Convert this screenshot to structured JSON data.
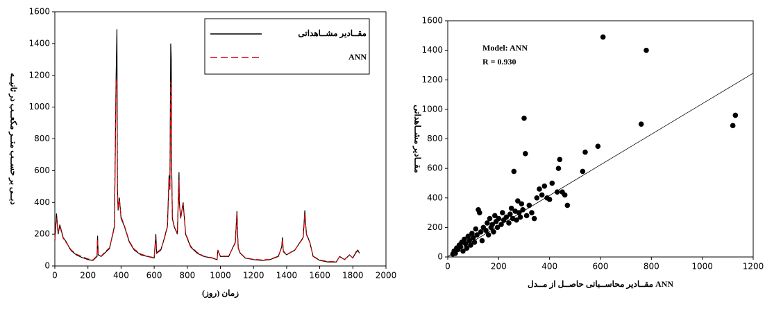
{
  "chart_data": [
    {
      "type": "line",
      "y_label": "دبــی بر حســب متــر مکعــب در ثانیــه",
      "x_label": "زمان (روز)",
      "xlim": [
        0,
        2000
      ],
      "xticks": [
        0,
        200,
        400,
        600,
        800,
        1000,
        1200,
        1400,
        1600,
        1800,
        2000
      ],
      "ylim": [
        0,
        1600
      ],
      "yticks": [
        0,
        200,
        400,
        600,
        800,
        1000,
        1200,
        1400,
        1600
      ],
      "legend": "upper right",
      "x": [
        0,
        10,
        20,
        30,
        50,
        70,
        90,
        100,
        130,
        160,
        200,
        230,
        255,
        258,
        262,
        280,
        300,
        330,
        360,
        370,
        375,
        378,
        382,
        390,
        400,
        420,
        450,
        480,
        520,
        560,
        600,
        610,
        615,
        640,
        660,
        680,
        690,
        695,
        700,
        703,
        706,
        710,
        720,
        740,
        750,
        752,
        756,
        760,
        775,
        790,
        820,
        860,
        900,
        950,
        980,
        985,
        1000,
        1050,
        1090,
        1100,
        1104,
        1108,
        1120,
        1150,
        1200,
        1250,
        1300,
        1350,
        1370,
        1375,
        1380,
        1400,
        1450,
        1500,
        1510,
        1515,
        1520,
        1540,
        1560,
        1600,
        1650,
        1700,
        1720,
        1750,
        1780,
        1800,
        1820,
        1830,
        1840
      ],
      "series": [
        {
          "name": "مقــادیر مشــاهداتی",
          "color": "#000000",
          "dash": false,
          "values": [
            160,
            330,
            200,
            260,
            180,
            150,
            110,
            95,
            70,
            55,
            40,
            35,
            60,
            190,
            70,
            60,
            80,
            110,
            250,
            1190,
            1490,
            500,
            350,
            430,
            300,
            250,
            150,
            100,
            70,
            60,
            50,
            200,
            80,
            100,
            170,
            250,
            570,
            500,
            1400,
            1300,
            600,
            300,
            250,
            200,
            590,
            400,
            350,
            300,
            400,
            200,
            120,
            80,
            60,
            50,
            40,
            100,
            60,
            60,
            150,
            345,
            200,
            110,
            80,
            50,
            40,
            35,
            40,
            60,
            120,
            180,
            90,
            70,
            100,
            180,
            350,
            260,
            200,
            150,
            60,
            35,
            25,
            25,
            60,
            40,
            70,
            50,
            90,
            100,
            80
          ]
        },
        {
          "name": "ANN",
          "color": "#e00000",
          "dash": true,
          "values": [
            170,
            300,
            210,
            250,
            175,
            145,
            115,
            100,
            75,
            60,
            45,
            38,
            65,
            170,
            75,
            62,
            85,
            115,
            240,
            1180,
            1150,
            480,
            360,
            420,
            310,
            255,
            155,
            105,
            75,
            62,
            52,
            180,
            85,
            105,
            165,
            245,
            540,
            480,
            1160,
            1100,
            560,
            310,
            255,
            205,
            540,
            390,
            345,
            305,
            390,
            205,
            125,
            85,
            62,
            52,
            42,
            95,
            62,
            62,
            145,
            330,
            195,
            115,
            82,
            52,
            42,
            38,
            42,
            62,
            115,
            170,
            95,
            72,
            102,
            175,
            330,
            250,
            195,
            148,
            62,
            38,
            28,
            28,
            58,
            42,
            68,
            52,
            85,
            95,
            82
          ]
        }
      ]
    },
    {
      "type": "scatter",
      "y_label": "مقــادیر مشــاهداتی",
      "x_label": "مقــادیر محاســباتی حاصــل از مــدل ANN",
      "annotations": [
        "Model: ANN",
        "R = 0.930"
      ],
      "xlim": [
        0,
        1200
      ],
      "xticks": [
        0,
        200,
        400,
        600,
        800,
        1000,
        1200
      ],
      "ylim": [
        0,
        1600
      ],
      "yticks": [
        0,
        200,
        400,
        600,
        800,
        1000,
        1200,
        1400,
        1600
      ],
      "color": "#000000",
      "x": [
        20,
        25,
        30,
        35,
        40,
        45,
        50,
        55,
        60,
        65,
        70,
        75,
        80,
        85,
        90,
        95,
        100,
        105,
        110,
        115,
        120,
        125,
        130,
        135,
        140,
        150,
        155,
        160,
        165,
        170,
        175,
        180,
        185,
        190,
        195,
        200,
        210,
        215,
        220,
        230,
        240,
        245,
        250,
        255,
        260,
        265,
        270,
        275,
        280,
        285,
        290,
        295,
        300,
        305,
        310,
        320,
        330,
        340,
        350,
        360,
        370,
        380,
        390,
        400,
        410,
        430,
        435,
        440,
        450,
        460,
        470,
        530,
        540,
        590,
        610,
        760,
        780,
        1120,
        1130
      ],
      "values": [
        20,
        40,
        25,
        60,
        50,
        80,
        70,
        100,
        40,
        120,
        90,
        60,
        140,
        110,
        80,
        160,
        130,
        100,
        190,
        150,
        320,
        300,
        170,
        110,
        200,
        180,
        230,
        150,
        260,
        200,
        220,
        170,
        280,
        240,
        200,
        260,
        220,
        300,
        250,
        270,
        230,
        290,
        330,
        260,
        580,
        310,
        250,
        380,
        300,
        270,
        360,
        320,
        940,
        700,
        280,
        350,
        300,
        260,
        400,
        460,
        420,
        480,
        400,
        390,
        500,
        440,
        600,
        660,
        440,
        420,
        350,
        580,
        710,
        750,
        1490,
        900,
        1400,
        890,
        960
      ],
      "fit_line": {
        "x": [
          0,
          1200
        ],
        "y": [
          3,
          1245
        ]
      }
    }
  ]
}
